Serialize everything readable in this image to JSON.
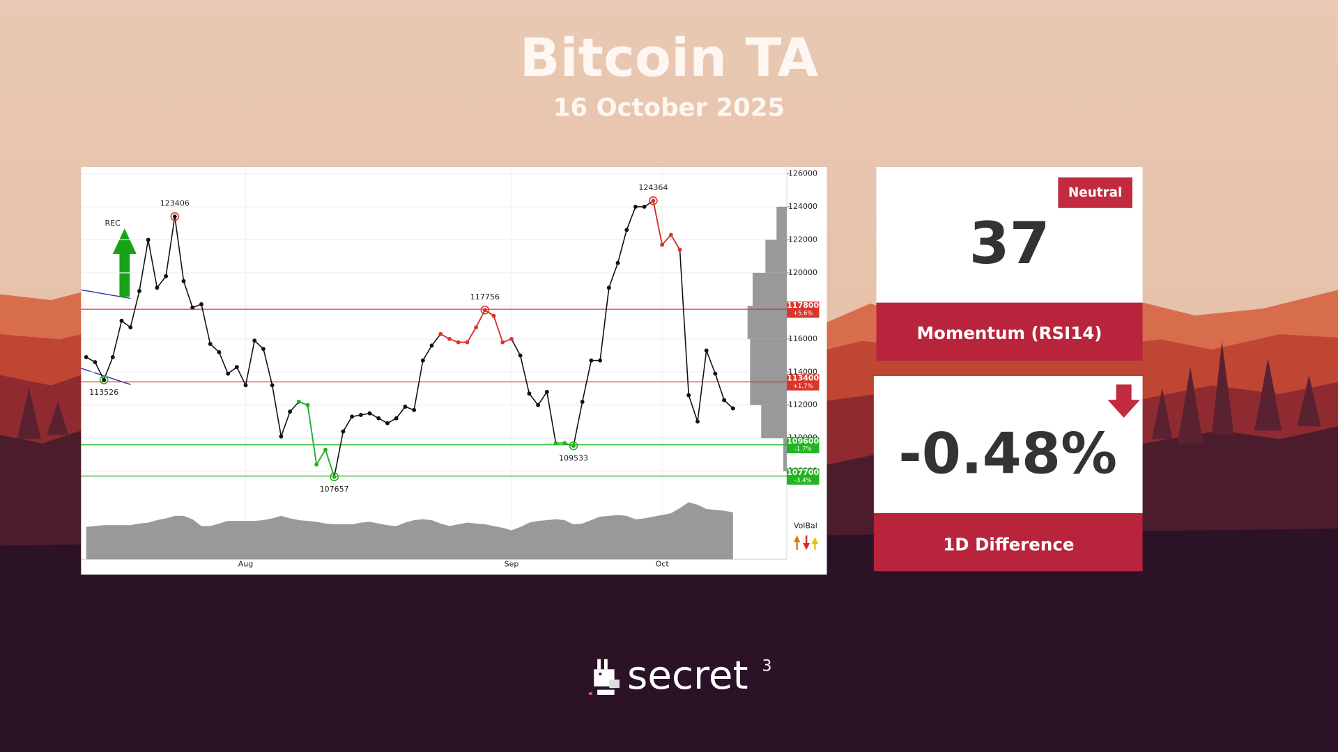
{
  "header": {
    "title": "Bitcoin TA",
    "subtitle": "16 October 2025"
  },
  "chart_data": {
    "type": "line",
    "categories": [
      null,
      null,
      null,
      null,
      null,
      null,
      null,
      null,
      null,
      null,
      null,
      null,
      null,
      null,
      null,
      null,
      null,
      null,
      "Aug",
      null,
      null,
      null,
      null,
      null,
      null,
      null,
      null,
      null,
      null,
      null,
      null,
      null,
      null,
      null,
      null,
      null,
      null,
      null,
      null,
      null,
      null,
      null,
      null,
      null,
      null,
      null,
      null,
      null,
      "Sep",
      null,
      null,
      null,
      null,
      null,
      null,
      null,
      null,
      null,
      null,
      null,
      null,
      null,
      null,
      null,
      null,
      "Oct",
      null,
      null,
      null,
      null,
      null,
      null,
      null,
      null
    ],
    "series": [
      {
        "color": "#111111",
        "values": [
          114900,
          114600,
          113526,
          114900,
          117100,
          116700,
          118900,
          122000,
          119100,
          119800,
          123406,
          119500,
          117900,
          118100,
          115700,
          115200,
          113900,
          114300,
          113200,
          115900,
          115400,
          113200,
          110100,
          111600,
          112200,
          112000,
          108400,
          109300,
          107657,
          110400,
          111300,
          111400,
          111500,
          111200,
          110900,
          111200,
          111900,
          111700,
          114700,
          115600,
          116300,
          116000,
          115800,
          115800,
          116700,
          117756,
          117400,
          115800,
          116000,
          115000,
          112700,
          112000,
          112800,
          109700,
          109700,
          109533,
          112200,
          114700,
          114700,
          119100,
          120600,
          122600,
          124000,
          124000,
          124364,
          121700,
          122300,
          121400,
          112600,
          111000,
          115300,
          113900,
          112300,
          111800
        ]
      }
    ],
    "annotated": [
      2,
      10,
      28,
      45,
      55,
      64
    ],
    "segments": [
      {
        "from": 24,
        "to": 28,
        "color": "#22b422"
      },
      {
        "from": 53,
        "to": 55,
        "color": "#22b422"
      },
      {
        "from": 40,
        "to": 48,
        "color": "#d9362b"
      },
      {
        "from": 64,
        "to": 67,
        "color": "#d9362b"
      }
    ],
    "levels": [
      {
        "value": 117800,
        "change": "+5.6%",
        "color": "#d9362b"
      },
      {
        "value": 113400,
        "change": "+1.7%",
        "color": "#d9362b"
      },
      {
        "value": 109600,
        "change": "-1.7%",
        "color": "#22b422"
      },
      {
        "value": 107700,
        "change": "-3.4%",
        "color": "#22b422"
      }
    ],
    "annotation": "REC",
    "ylim": [
      107000,
      126400
    ],
    "yticks": [
      108000,
      110000,
      112000,
      114000,
      116000,
      118000,
      120000,
      122000,
      124000,
      126000
    ],
    "grid": true,
    "volume": {
      "label": "VolBal",
      "color": "#999999",
      "values": [
        38,
        39,
        40,
        40,
        40,
        40,
        42,
        43,
        46,
        48,
        51,
        51,
        47,
        39,
        39,
        42,
        45,
        45,
        45,
        45,
        46,
        48,
        51,
        48,
        46,
        45,
        44,
        42,
        41,
        41,
        41,
        43,
        44,
        42,
        40,
        39,
        43,
        46,
        47,
        46,
        42,
        39,
        41,
        43,
        42,
        41,
        39,
        37,
        34,
        38,
        43,
        45,
        46,
        47,
        46,
        41,
        42,
        46,
        50,
        51,
        52,
        51,
        47,
        48,
        50,
        52,
        54,
        60,
        67,
        64,
        59,
        58,
        57,
        55
      ]
    },
    "volume_profile": {
      "color": "#999999",
      "bins": [
        108000,
        110000,
        112000,
        114000,
        116000,
        118000,
        120000,
        122000,
        124000
      ],
      "values": [
        4,
        30,
        43,
        43,
        46,
        40,
        25,
        12
      ]
    }
  },
  "cards": [
    {
      "badge": "Neutral",
      "value": 37,
      "label": "Momentum (RSI14)"
    },
    {
      "value": "-0.48%",
      "label": "1D Difference"
    }
  ],
  "footer": {
    "brand": "secret",
    "superscript": "3"
  }
}
